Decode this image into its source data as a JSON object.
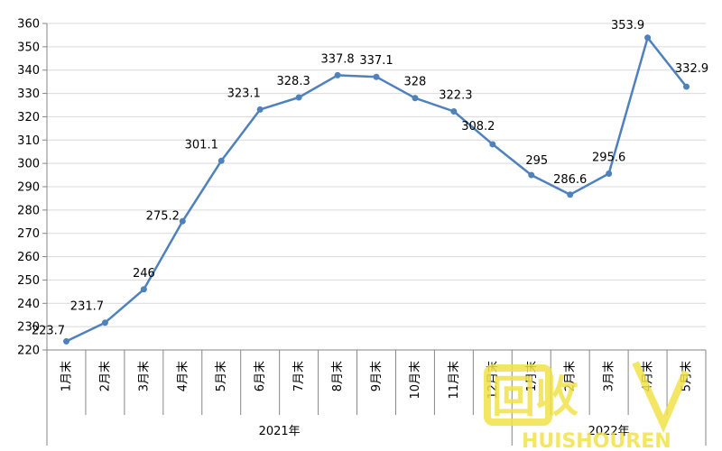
{
  "chart_data": {
    "type": "line",
    "categories": [
      "1月末",
      "2月末",
      "3月末",
      "4月末",
      "5月末",
      "6月末",
      "7月末",
      "8月末",
      "9月末",
      "10月末",
      "11月末",
      "12月末",
      "1月末",
      "2月末",
      "3月末",
      "4月末",
      "5月末"
    ],
    "groups": [
      {
        "label": "2021年",
        "start": 0,
        "end": 11
      },
      {
        "label": "2022年",
        "start": 12,
        "end": 16
      }
    ],
    "series": [
      {
        "values": [
          223.7,
          231.7,
          246,
          275.2,
          301.1,
          323.1,
          328.3,
          337.8,
          337.1,
          328,
          322.3,
          308.2,
          295,
          286.6,
          295.6,
          353.9,
          332.9
        ],
        "color": "#4f81bd"
      }
    ],
    "data_labels": [
      "223.7",
      "231.7",
      "246",
      "275.2",
      "301.1",
      "323.1",
      "328.3",
      "337.8",
      "337.1",
      "328",
      "322.3",
      "308.2",
      "295",
      "286.6",
      "295.6",
      "353.9",
      "332.9"
    ],
    "ylim": [
      220,
      360
    ],
    "yticks": [
      "220",
      "230",
      "240",
      "250",
      "260",
      "270",
      "280",
      "290",
      "300",
      "310",
      "320",
      "330",
      "340",
      "350",
      "360"
    ],
    "grid": true
  },
  "watermark": {
    "text": "回收",
    "subtext": "HUISHOUREN",
    "color": "#f2e24a"
  }
}
